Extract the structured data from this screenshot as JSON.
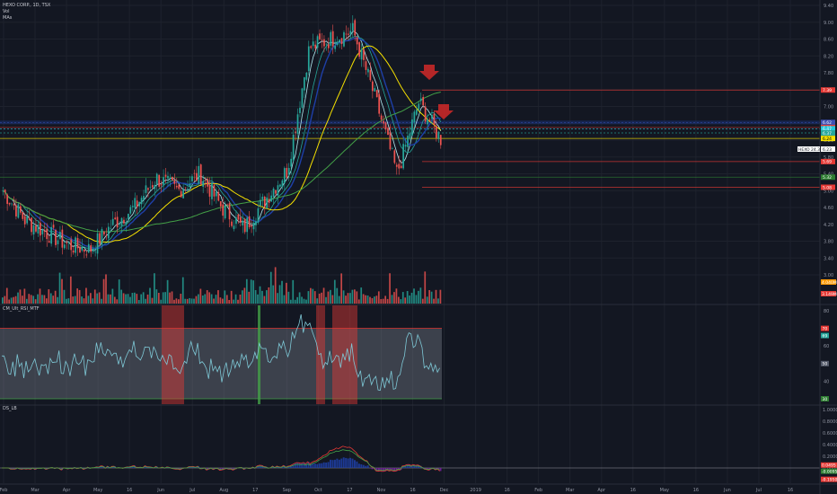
{
  "header": {
    "symbol_line": "HEXO CORP., 1D, TSX",
    "vol_label": "Vol",
    "ma_label": "MAs"
  },
  "panels": {
    "rsi_title": "CM_Ult_RSI_MTF",
    "ds_title": "DS_LB"
  },
  "price_axis": {
    "ticks": [
      "9.40",
      "9.00",
      "8.60",
      "8.20",
      "7.80",
      "7.40",
      "7.00",
      "6.60",
      "6.20",
      "5.80",
      "5.40",
      "5.00",
      "4.60",
      "4.20",
      "3.80",
      "3.40",
      "3.00"
    ],
    "tags": [
      {
        "label": "7.39",
        "value": 7.39,
        "color": "#e53935"
      },
      {
        "label": "6.62",
        "value": 6.62,
        "color": "#3f51b5"
      },
      {
        "label": "6.50",
        "value": 6.5,
        "color": "#e53935"
      },
      {
        "label": "6.47",
        "value": 6.47,
        "color": "#26c6da"
      },
      {
        "label": "6.37",
        "value": 6.37,
        "color": "#26a69a"
      },
      {
        "label": "6.24",
        "value": 6.24,
        "color": "#f5e000"
      },
      {
        "label": "5.69",
        "value": 5.69,
        "color": "#e53935"
      },
      {
        "label": "5.32",
        "value": 5.32,
        "color": "#2e7d32"
      },
      {
        "label": "5.08",
        "value": 5.08,
        "color": "#e53935"
      }
    ],
    "last_label": "HEXO 24.30%",
    "last_value": "6.23",
    "vol_tags": [
      {
        "label": "4.040M",
        "color": "#ff9800"
      },
      {
        "label": "3.149M",
        "color": "#e53935"
      }
    ]
  },
  "rsi_axis": {
    "ticks": [
      "80",
      "70",
      "60",
      "50",
      "40",
      "30"
    ],
    "tags": [
      {
        "label": "70",
        "color": "#e53935"
      },
      {
        "label": "69",
        "color": "#26a69a"
      },
      {
        "label": "50",
        "color": "#555b6b"
      },
      {
        "label": "30",
        "color": "#2e7d32"
      }
    ]
  },
  "ds_axis": {
    "ticks": [
      "1.0000",
      "0.8000",
      "0.6000",
      "0.4000",
      "0.2000",
      "0.0000",
      "-0.2000"
    ],
    "tags": [
      {
        "label": "0.0495",
        "color": "#e53935"
      },
      {
        "label": "-0.0095",
        "color": "#2e7d32"
      },
      {
        "label": "-0.1950",
        "color": "#e53935"
      }
    ]
  },
  "time_axis": {
    "labels": [
      "Feb",
      "Mar",
      "Apr",
      "May",
      "16",
      "Jun",
      "Jul",
      "Aug",
      "17",
      "Sep",
      "Oct",
      "17",
      "Nov",
      "16",
      "Dec",
      "2019",
      "16",
      "Feb",
      "Mar",
      "Apr",
      "16",
      "May",
      "16",
      "Jun",
      "Jul",
      "16"
    ]
  },
  "colors": {
    "background": "#131722",
    "up": "#26a69a",
    "down": "#ef5350",
    "ma_fast": "#b2ebf2",
    "ma_mid": "#26a69a",
    "ma_blue": "#1e3fa8",
    "ma_yellow": "#f5e000",
    "ma_green": "#43a047",
    "rsi_line": "#7ec8d6",
    "rsi_band": "#8a8f9c",
    "arrow": "#c62828"
  },
  "chart_data": {
    "type": "candlestick",
    "price_range": [
      3.0,
      9.4
    ],
    "key_levels": [
      7.39,
      6.62,
      6.5,
      6.47,
      6.37,
      6.24,
      5.69,
      5.32,
      5.08
    ],
    "price_path": [
      [
        "Feb",
        5.0
      ],
      [
        "Feb",
        4.3
      ],
      [
        "Mar",
        4.0
      ],
      [
        "Mar",
        3.7
      ],
      [
        "Apr",
        3.6
      ],
      [
        "Apr",
        4.2
      ],
      [
        "May",
        4.6
      ],
      [
        "May",
        5.3
      ],
      [
        "Jun",
        5.0
      ],
      [
        "Jun",
        5.4
      ],
      [
        "Jul",
        4.6
      ],
      [
        "Jul",
        4.1
      ],
      [
        "Aug",
        4.8
      ],
      [
        "Aug",
        5.5
      ],
      [
        "Sep",
        8.4
      ],
      [
        "Sep",
        8.6
      ],
      [
        "Oct",
        8.8
      ],
      [
        "Oct",
        7.2
      ],
      [
        "Nov",
        5.4
      ],
      [
        "Nov",
        7.1
      ],
      [
        "Nov",
        6.23
      ]
    ],
    "rsi": {
      "range": [
        30,
        80
      ],
      "upper": 70,
      "lower": 30,
      "last": 69
    },
    "ds_lb": {
      "range": [
        -0.2,
        1.0
      ],
      "last": [
        0.0495,
        -0.0095,
        -0.195
      ]
    }
  }
}
